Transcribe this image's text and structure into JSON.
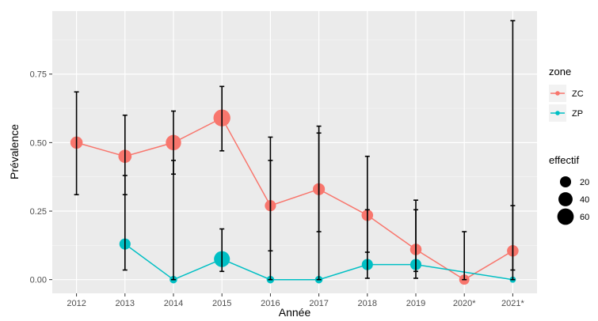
{
  "chart_data": {
    "type": "line",
    "xlabel": "Année",
    "ylabel": "Prévalence",
    "categories": [
      "2012",
      "2013",
      "2014",
      "2015",
      "2016",
      "2017",
      "2018",
      "2019",
      "2020*",
      "2021*"
    ],
    "ylim": [
      -0.05,
      0.98
    ],
    "yticks": [
      0.0,
      0.25,
      0.5,
      0.75
    ],
    "ytick_labels": [
      "0.00",
      "0.25",
      "0.50",
      "0.75"
    ],
    "grid": true,
    "legend_position": "right",
    "series": [
      {
        "name": "ZC",
        "color": "#F8766D",
        "points": [
          {
            "x": "2012",
            "y": 0.5,
            "lower": 0.31,
            "upper": 0.685,
            "n": 27
          },
          {
            "x": "2013",
            "y": 0.45,
            "lower": 0.31,
            "upper": 0.6,
            "n": 33
          },
          {
            "x": "2014",
            "y": 0.5,
            "lower": 0.385,
            "upper": 0.615,
            "n": 50
          },
          {
            "x": "2015",
            "y": 0.59,
            "lower": 0.47,
            "upper": 0.705,
            "n": 65
          },
          {
            "x": "2016",
            "y": 0.27,
            "lower": 0.105,
            "upper": 0.52,
            "n": 20
          },
          {
            "x": "2017",
            "y": 0.33,
            "lower": 0.175,
            "upper": 0.535,
            "n": 25
          },
          {
            "x": "2018",
            "y": 0.235,
            "lower": 0.1,
            "upper": 0.45,
            "n": 22
          },
          {
            "x": "2019",
            "y": 0.11,
            "lower": 0.03,
            "upper": 0.29,
            "n": 22
          },
          {
            "x": "2020*",
            "y": 0.0,
            "lower": 0.0,
            "upper": 0.175,
            "n": 15
          },
          {
            "x": "2021*",
            "y": 0.105,
            "lower": 0.035,
            "upper": 0.27,
            "n": 22
          }
        ]
      },
      {
        "name": "ZP",
        "color": "#00BFC4",
        "points": [
          {
            "x": "2013",
            "y": 0.13,
            "lower": 0.035,
            "upper": 0.38,
            "n": 20
          },
          {
            "x": "2014",
            "y": 0.0,
            "lower": 0.0,
            "upper": 0.435,
            "n": 5
          },
          {
            "x": "2015",
            "y": 0.075,
            "lower": 0.03,
            "upper": 0.185,
            "n": 55
          },
          {
            "x": "2016",
            "y": 0.0,
            "lower": 0.0,
            "upper": 0.435,
            "n": 5
          },
          {
            "x": "2017",
            "y": 0.0,
            "lower": 0.0,
            "upper": 0.56,
            "n": 5
          },
          {
            "x": "2018",
            "y": 0.055,
            "lower": 0.005,
            "upper": 0.255,
            "n": 20
          },
          {
            "x": "2019",
            "y": 0.055,
            "lower": 0.005,
            "upper": 0.255,
            "n": 20
          },
          {
            "x": "2021*",
            "y": 0.0,
            "lower": 0.0,
            "upper": 0.945,
            "n": 2
          }
        ]
      }
    ],
    "legend": {
      "color_title": "zone",
      "color_entries": [
        "ZC",
        "ZP"
      ],
      "size_title": "effectif",
      "size_entries": [
        20,
        40,
        60
      ]
    }
  }
}
